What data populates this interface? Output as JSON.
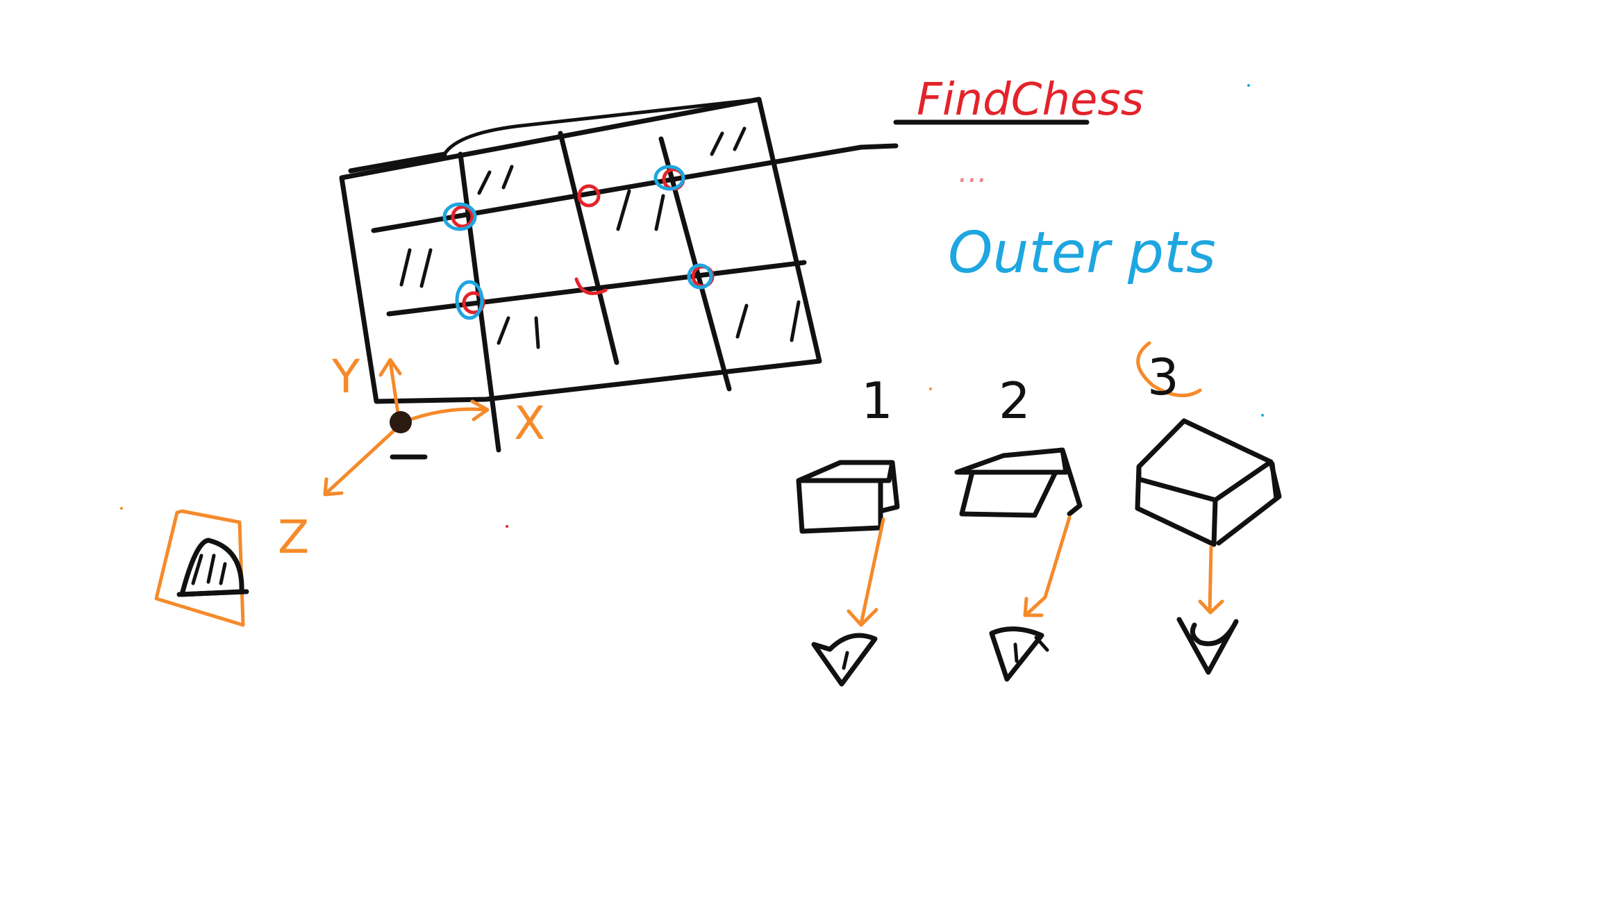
{
  "colors": {
    "ink": "#111111",
    "axes": "#f58a2a",
    "find_chess": "#e3232b",
    "outer_points": "#1ea6e0",
    "background": "#ffffff"
  },
  "annotations": {
    "title": "FindChess",
    "subtitle": "...",
    "outer_points": "Outer pts"
  },
  "axes": {
    "x_label": "X",
    "y_label": "Y",
    "z_label": "Z"
  },
  "camera_views": {
    "labels": [
      "1",
      "2",
      "3"
    ]
  },
  "icons": [
    "camera-icon",
    "origin-point-icon",
    "eye-icon"
  ]
}
